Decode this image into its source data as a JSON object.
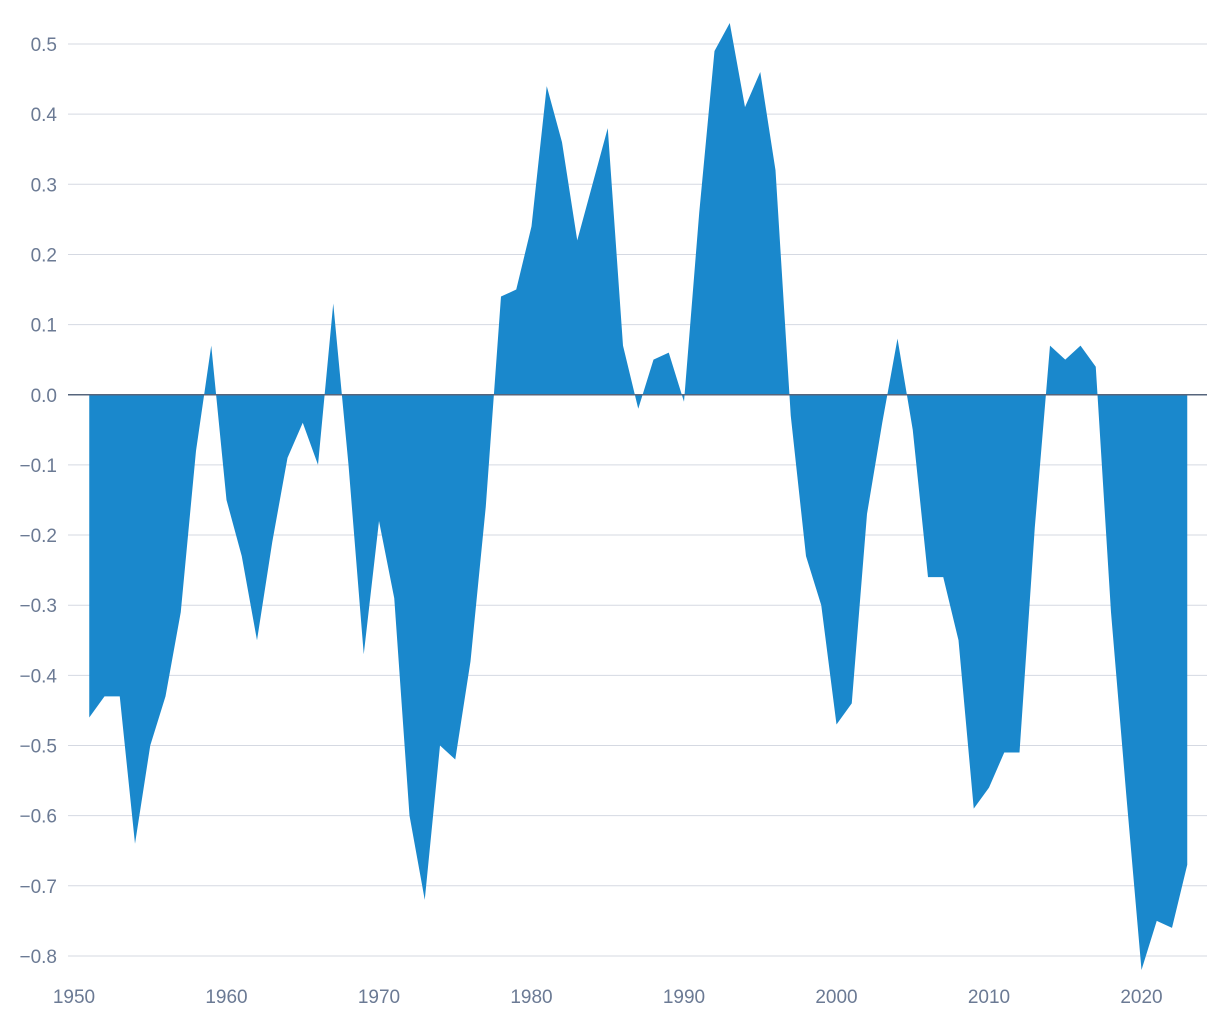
{
  "chart_data": {
    "type": "area",
    "title": "",
    "xlabel": "",
    "ylabel": "",
    "xlim": [
      1950,
      2023
    ],
    "ylim": [
      -0.85,
      0.53
    ],
    "grid": true,
    "legend": "none",
    "color": "#1a88cc",
    "zero_line_color": "#56657c",
    "x_ticks": [
      1950,
      1960,
      1970,
      1980,
      1990,
      2000,
      2010,
      2020
    ],
    "x_tick_labels": [
      "1950",
      "1960",
      "1970",
      "1980",
      "1990",
      "2000",
      "2010",
      "2020"
    ],
    "y_ticks": [
      0.5,
      0.4,
      0.3,
      0.2,
      0.1,
      0.0,
      -0.1,
      -0.2,
      -0.3,
      -0.4,
      -0.5,
      -0.6,
      -0.7,
      -0.8
    ],
    "y_tick_labels": [
      "0.5",
      "0.4",
      "0.3",
      "0.2",
      "0.1",
      "0.0",
      "−0.1",
      "−0.2",
      "−0.3",
      "−0.4",
      "−0.5",
      "−0.6",
      "−0.7",
      "−0.8"
    ],
    "series": [
      {
        "x": [
          1951,
          1952,
          1953,
          1954,
          1955,
          1956,
          1957,
          1958,
          1959,
          1960,
          1961,
          1962,
          1963,
          1964,
          1965,
          1966,
          1967,
          1968,
          1969,
          1970,
          1971,
          1972,
          1973,
          1974,
          1975,
          1976,
          1977,
          1978,
          1979,
          1980,
          1981,
          1982,
          1983,
          1984,
          1985,
          1986,
          1987,
          1988,
          1989,
          1990,
          1991,
          1992,
          1993,
          1994,
          1995,
          1996,
          1997,
          1998,
          1999,
          2000,
          2001,
          2002,
          2003,
          2004,
          2005,
          2006,
          2007,
          2008,
          2009,
          2010,
          2011,
          2012,
          2013,
          2014,
          2015,
          2016,
          2017,
          2018,
          2019,
          2020,
          2021,
          2022,
          2023
        ],
        "values": [
          -0.46,
          -0.43,
          -0.43,
          -0.64,
          -0.5,
          -0.43,
          -0.31,
          -0.08,
          0.07,
          -0.15,
          -0.23,
          -0.35,
          -0.21,
          -0.09,
          -0.04,
          -0.1,
          0.13,
          -0.1,
          -0.37,
          -0.18,
          -0.29,
          -0.6,
          -0.72,
          -0.5,
          -0.52,
          -0.38,
          -0.16,
          0.14,
          0.15,
          0.24,
          0.44,
          0.36,
          0.22,
          0.3,
          0.38,
          0.07,
          -0.02,
          0.05,
          0.06,
          -0.01,
          0.26,
          0.49,
          0.53,
          0.41,
          0.46,
          0.32,
          -0.03,
          -0.23,
          -0.3,
          -0.47,
          -0.44,
          -0.17,
          -0.04,
          0.08,
          -0.05,
          -0.26,
          -0.26,
          -0.35,
          -0.59,
          -0.56,
          -0.51,
          -0.51,
          -0.19,
          0.07,
          0.05,
          0.07,
          0.04,
          -0.31,
          -0.57,
          -0.82,
          -0.75,
          -0.76,
          -0.67
        ]
      }
    ]
  }
}
